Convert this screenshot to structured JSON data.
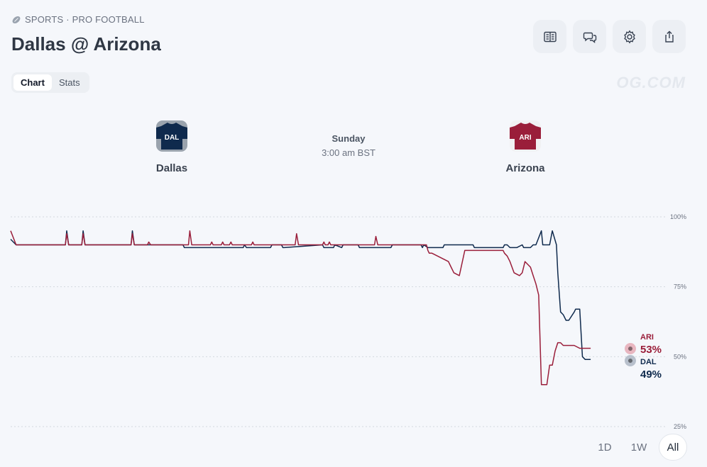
{
  "breadcrumb": {
    "icon": "football-icon",
    "text": "SPORTS · PRO FOOTBALL"
  },
  "page_title": "Dallas @ Arizona",
  "toolbar": [
    {
      "name": "rules-button",
      "icon": "book-icon"
    },
    {
      "name": "comments-button",
      "icon": "chat-bubbles-icon"
    },
    {
      "name": "settings-button",
      "icon": "gear-icon"
    },
    {
      "name": "share-button",
      "icon": "share-icon"
    }
  ],
  "watermark": "OG.COM",
  "tabs": {
    "chart": "Chart",
    "stats": "Stats",
    "active": "chart"
  },
  "teams": {
    "home": {
      "abbr": "DAL",
      "name": "Dallas",
      "color": "#0f2a4d"
    },
    "away": {
      "abbr": "ARI",
      "name": "Arizona",
      "color": "#9a1e3a"
    }
  },
  "game": {
    "day": "Sunday",
    "time": "3:00 am BST"
  },
  "legend": [
    {
      "abbr": "ARI",
      "pct": "53%",
      "color": "#9a1e3a",
      "dot": "#e8b6c0"
    },
    {
      "abbr": "DAL",
      "pct": "49%",
      "color": "#0f2a4d",
      "dot": "#b8c0cc"
    }
  ],
  "range_buttons": {
    "d1": "1D",
    "w1": "1W",
    "all": "All",
    "active": "all"
  },
  "chart_data": {
    "type": "line",
    "ylim": [
      25,
      100
    ],
    "yticks": [
      "100%",
      "75%",
      "50%",
      "25%"
    ],
    "ytick_values": [
      100,
      75,
      50,
      25
    ],
    "grid": true,
    "series": [
      {
        "name": "DAL",
        "color": "#0f2a4d",
        "x": [
          0,
          2,
          20,
          20.5,
          21.2,
          26,
          26.5,
          27.2,
          44,
          44.5,
          45.2,
          63,
          63.5,
          85,
          85.5,
          86.2,
          95,
          95.5,
          99,
          99.5,
          100,
          114,
          114.5,
          118,
          118.5,
          121,
          121.5,
          127,
          127.5,
          139,
          139.5,
          150,
          150.5,
          151,
          152.5,
          158,
          158.5,
          169,
          169.5,
          180,
          180.5,
          181.5,
          182.5,
          185,
          187,
          187.5,
          190,
          191,
          192,
          194,
          194.5,
          197,
          198,
          199.5,
          200,
          201,
          202,
          203,
          204,
          206,
          206.5,
          208,
          209,
          210,
          211,
          212
        ],
        "values": [
          92,
          90,
          90,
          95,
          90,
          90,
          95,
          90,
          90,
          95,
          90,
          90,
          89,
          89,
          90,
          89,
          89,
          90,
          90,
          89,
          89,
          90,
          89,
          89,
          90,
          89,
          90,
          90,
          89,
          89,
          90,
          90,
          89,
          90,
          89,
          89,
          90,
          90,
          89,
          89,
          90,
          90,
          89,
          89,
          90,
          89,
          89,
          90,
          90,
          95,
          90,
          90,
          95,
          90,
          80,
          66,
          65,
          63,
          63,
          66,
          67,
          67,
          50,
          49,
          49,
          49
        ]
      },
      {
        "name": "ARI",
        "color": "#9a1e3a",
        "x": [
          0,
          2,
          20,
          20.5,
          21.2,
          26,
          26.5,
          27.2,
          44,
          44.5,
          45.2,
          50,
          50.5,
          51.2,
          65,
          65.5,
          66.2,
          73,
          73.5,
          74,
          77,
          77.5,
          78,
          80,
          80.5,
          81,
          88,
          88.5,
          89,
          104,
          104.5,
          105.2,
          114,
          114.5,
          115,
          116,
          116.5,
          117,
          133,
          133.5,
          134.2,
          152,
          152.5,
          153,
          154,
          160,
          161,
          162,
          164,
          166,
          166.5,
          180,
          180.5,
          181.5,
          182.5,
          184,
          186,
          187,
          188,
          190,
          191,
          192,
          193,
          194,
          196,
          197,
          198,
          199,
          200,
          201,
          202,
          204,
          206,
          208,
          209,
          210,
          211,
          212
        ],
        "values": [
          95,
          90,
          90,
          94,
          90,
          90,
          94,
          90,
          90,
          94,
          90,
          90,
          91,
          90,
          90,
          95,
          90,
          90,
          91,
          90,
          90,
          91,
          90,
          90,
          91,
          90,
          90,
          91,
          90,
          90,
          94,
          90,
          90,
          91,
          90,
          90,
          91,
          90,
          90,
          93,
          90,
          90,
          88,
          87,
          87,
          84,
          82,
          80,
          79,
          88,
          88,
          88,
          87,
          86,
          84,
          80,
          79,
          80,
          84,
          82,
          79,
          76,
          72,
          40,
          40,
          47,
          47,
          52,
          55,
          55,
          54,
          54,
          54,
          53,
          53,
          53,
          53,
          53
        ]
      }
    ]
  }
}
